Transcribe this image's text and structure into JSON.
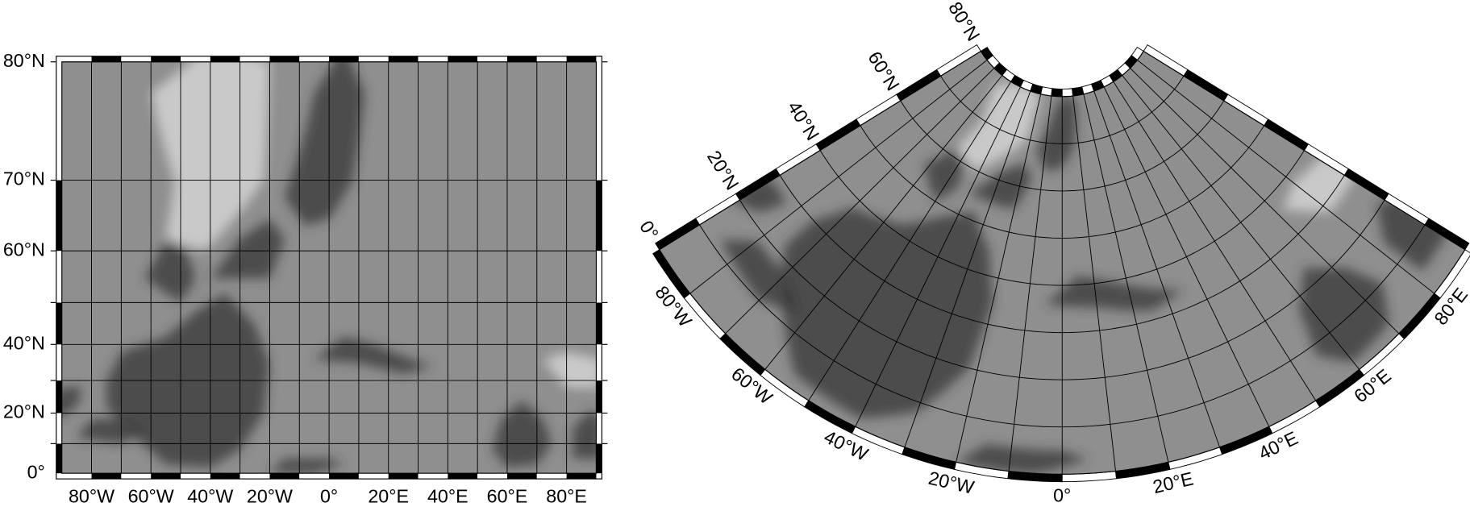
{
  "maps": [
    {
      "lat_ticks": [
        {
          "value": 0,
          "label": "0°"
        },
        {
          "value": 20,
          "label": "20°N"
        },
        {
          "value": 40,
          "label": "40°N"
        },
        {
          "value": 60,
          "label": "60°N"
        },
        {
          "value": 70,
          "label": "70°N"
        },
        {
          "value": 80,
          "label": "80°N"
        }
      ],
      "lon_ticks": [
        {
          "value": -80,
          "label": "80°W"
        },
        {
          "value": -60,
          "label": "60°W"
        },
        {
          "value": -40,
          "label": "40°W"
        },
        {
          "value": -20,
          "label": "20°W"
        },
        {
          "value": 0,
          "label": "0°"
        },
        {
          "value": 20,
          "label": "20°E"
        },
        {
          "value": 40,
          "label": "40°E"
        },
        {
          "value": 60,
          "label": "60°E"
        },
        {
          "value": 80,
          "label": "80°E"
        }
      ]
    },
    {
      "lat_ticks": [
        {
          "value": 0,
          "label": "0°"
        },
        {
          "value": 20,
          "label": "20°N"
        },
        {
          "value": 40,
          "label": "40°N"
        },
        {
          "value": 60,
          "label": "60°N"
        },
        {
          "value": 80,
          "label": "80°N"
        }
      ],
      "lon_ticks": [
        {
          "value": -80,
          "label": "80°W"
        },
        {
          "value": -60,
          "label": "60°W"
        },
        {
          "value": -40,
          "label": "40°W"
        },
        {
          "value": -20,
          "label": "20°W"
        },
        {
          "value": 0,
          "label": "0°"
        },
        {
          "value": 20,
          "label": "20°E"
        },
        {
          "value": 40,
          "label": "40°E"
        },
        {
          "value": 60,
          "label": "60°E"
        },
        {
          "value": 80,
          "label": "80°E"
        }
      ]
    }
  ]
}
